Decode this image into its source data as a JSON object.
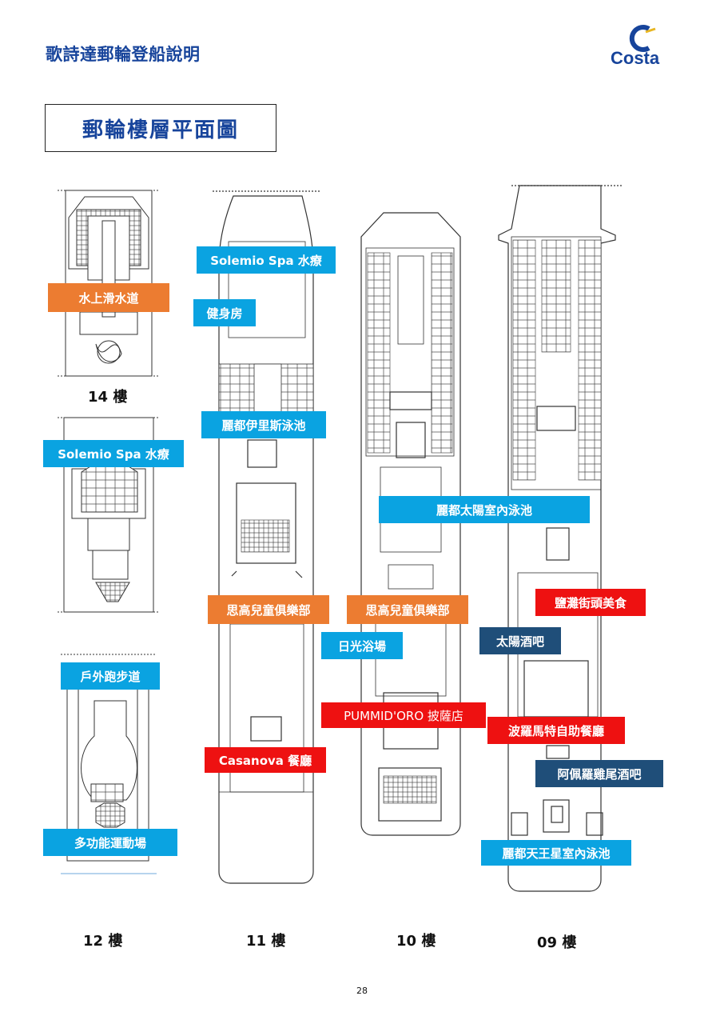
{
  "header": {
    "title": "歌詩達郵輪登船說明",
    "logo_text": "Costa"
  },
  "section": {
    "title": "郵輪樓層平面圖"
  },
  "floors": {
    "f14": "14 樓",
    "f12": "12 樓",
    "f11": "11 樓",
    "f10": "10 樓",
    "f09": "09 樓"
  },
  "labels": {
    "waterslide": "水上滑水道",
    "spa_12": "Solemio Spa 水療",
    "jogging_track": "戶外跑步道",
    "sports_court": "多功能運動場",
    "spa_11": "Solemio Spa 水療",
    "gym": "健身房",
    "pool_11": "麗都伊里斯泳池",
    "kids_club_11": "思高兒童俱樂部",
    "casanova": "Casanova 餐廳",
    "indoor_pool_10": "麗都太陽室內泳池",
    "kids_club_10": "思高兒童俱樂部",
    "sun_deck": "日光浴場",
    "pizzeria": "PUMMID'ORO 披薩店",
    "street_food": "鹽灘街頭美食",
    "sun_bar": "太陽酒吧",
    "buffet": "波羅馬特自助餐廳",
    "cocktail_bar": "阿佩羅雞尾酒吧",
    "indoor_pool_09": "麗都天王星室內泳池"
  },
  "colors": {
    "brand": "#17449b",
    "cyan": "#0aa3e1",
    "orange": "#ec7c31",
    "red": "#ee1111",
    "navy": "#1f4e79"
  },
  "page_number": "28"
}
